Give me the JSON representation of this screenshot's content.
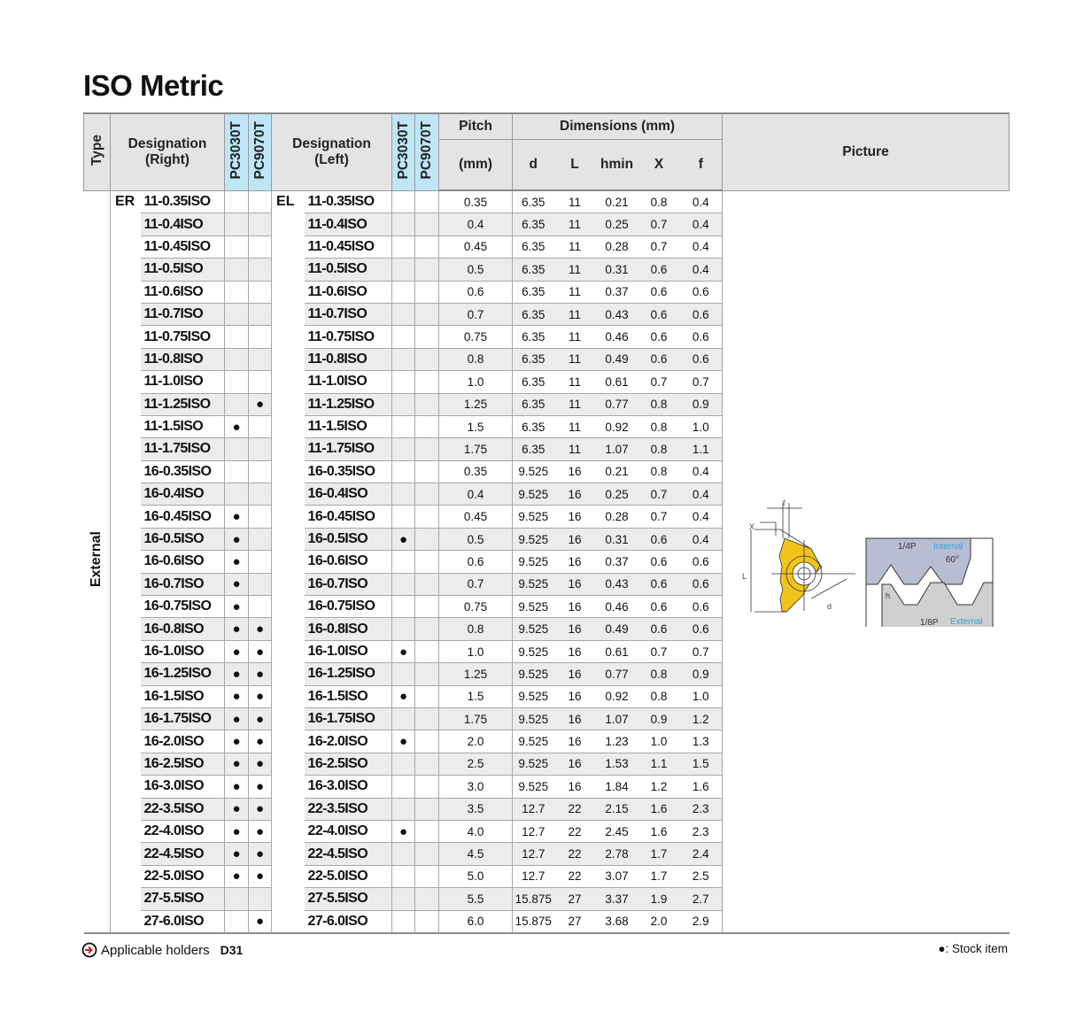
{
  "title": "ISO Metric",
  "header": {
    "type": "Type",
    "designation_right": [
      "Designation",
      "(Right)"
    ],
    "designation_left": [
      "Designation",
      "(Left)"
    ],
    "grades": [
      "PC3030T",
      "PC9070T"
    ],
    "pitch": "Pitch",
    "pitch_unit": "(mm)",
    "dimensions": "Dimensions (mm)",
    "dim_cols": [
      "d",
      "L",
      "hmin",
      "X",
      "f"
    ],
    "picture": "Picture"
  },
  "type_label": "External",
  "prefix_right": "ER",
  "prefix_left": "EL",
  "colors": {
    "header_bg": "#e4e4e4",
    "grade_header_bg": "#bfe6f7",
    "stripe": "#ececec",
    "insert": "#f2c31b",
    "accent_text": "#2aa3dc"
  },
  "rows": [
    {
      "des": "11-0.35ISO",
      "r1": false,
      "r2": false,
      "l1": false,
      "l2": false,
      "p": "0.35",
      "d": "6.35",
      "L": "11",
      "h": "0.21",
      "X": "0.8",
      "f": "0.4"
    },
    {
      "des": "11-0.4ISO",
      "r1": false,
      "r2": false,
      "l1": false,
      "l2": false,
      "p": "0.4",
      "d": "6.35",
      "L": "11",
      "h": "0.25",
      "X": "0.7",
      "f": "0.4"
    },
    {
      "des": "11-0.45ISO",
      "r1": false,
      "r2": false,
      "l1": false,
      "l2": false,
      "p": "0.45",
      "d": "6.35",
      "L": "11",
      "h": "0.28",
      "X": "0.7",
      "f": "0.4"
    },
    {
      "des": "11-0.5ISO",
      "r1": false,
      "r2": false,
      "l1": false,
      "l2": false,
      "p": "0.5",
      "d": "6.35",
      "L": "11",
      "h": "0.31",
      "X": "0.6",
      "f": "0.4"
    },
    {
      "des": "11-0.6ISO",
      "r1": false,
      "r2": false,
      "l1": false,
      "l2": false,
      "p": "0.6",
      "d": "6.35",
      "L": "11",
      "h": "0.37",
      "X": "0.6",
      "f": "0.6"
    },
    {
      "des": "11-0.7ISO",
      "r1": false,
      "r2": false,
      "l1": false,
      "l2": false,
      "p": "0.7",
      "d": "6.35",
      "L": "11",
      "h": "0.43",
      "X": "0.6",
      "f": "0.6"
    },
    {
      "des": "11-0.75ISO",
      "r1": false,
      "r2": false,
      "l1": false,
      "l2": false,
      "p": "0.75",
      "d": "6.35",
      "L": "11",
      "h": "0.46",
      "X": "0.6",
      "f": "0.6"
    },
    {
      "des": "11-0.8ISO",
      "r1": false,
      "r2": false,
      "l1": false,
      "l2": false,
      "p": "0.8",
      "d": "6.35",
      "L": "11",
      "h": "0.49",
      "X": "0.6",
      "f": "0.6"
    },
    {
      "des": "11-1.0ISO",
      "r1": false,
      "r2": false,
      "l1": false,
      "l2": false,
      "p": "1.0",
      "d": "6.35",
      "L": "11",
      "h": "0.61",
      "X": "0.7",
      "f": "0.7"
    },
    {
      "des": "11-1.25ISO",
      "r1": false,
      "r2": true,
      "l1": false,
      "l2": false,
      "p": "1.25",
      "d": "6.35",
      "L": "11",
      "h": "0.77",
      "X": "0.8",
      "f": "0.9"
    },
    {
      "des": "11-1.5ISO",
      "r1": true,
      "r2": false,
      "l1": false,
      "l2": false,
      "p": "1.5",
      "d": "6.35",
      "L": "11",
      "h": "0.92",
      "X": "0.8",
      "f": "1.0"
    },
    {
      "des": "11-1.75ISO",
      "r1": false,
      "r2": false,
      "l1": false,
      "l2": false,
      "p": "1.75",
      "d": "6.35",
      "L": "11",
      "h": "1.07",
      "X": "0.8",
      "f": "1.1"
    },
    {
      "des": "16-0.35ISO",
      "r1": false,
      "r2": false,
      "l1": false,
      "l2": false,
      "p": "0.35",
      "d": "9.525",
      "L": "16",
      "h": "0.21",
      "X": "0.8",
      "f": "0.4"
    },
    {
      "des": "16-0.4ISO",
      "r1": false,
      "r2": false,
      "l1": false,
      "l2": false,
      "p": "0.4",
      "d": "9.525",
      "L": "16",
      "h": "0.25",
      "X": "0.7",
      "f": "0.4"
    },
    {
      "des": "16-0.45ISO",
      "r1": true,
      "r2": false,
      "l1": false,
      "l2": false,
      "p": "0.45",
      "d": "9.525",
      "L": "16",
      "h": "0.28",
      "X": "0.7",
      "f": "0.4"
    },
    {
      "des": "16-0.5ISO",
      "r1": true,
      "r2": false,
      "l1": true,
      "l2": false,
      "p": "0.5",
      "d": "9.525",
      "L": "16",
      "h": "0.31",
      "X": "0.6",
      "f": "0.4"
    },
    {
      "des": "16-0.6ISO",
      "r1": true,
      "r2": false,
      "l1": false,
      "l2": false,
      "p": "0.6",
      "d": "9.525",
      "L": "16",
      "h": "0.37",
      "X": "0.6",
      "f": "0.6"
    },
    {
      "des": "16-0.7ISO",
      "r1": true,
      "r2": false,
      "l1": false,
      "l2": false,
      "p": "0.7",
      "d": "9.525",
      "L": "16",
      "h": "0.43",
      "X": "0.6",
      "f": "0.6"
    },
    {
      "des": "16-0.75ISO",
      "r1": true,
      "r2": false,
      "l1": false,
      "l2": false,
      "p": "0.75",
      "d": "9.525",
      "L": "16",
      "h": "0.46",
      "X": "0.6",
      "f": "0.6"
    },
    {
      "des": "16-0.8ISO",
      "r1": true,
      "r2": true,
      "l1": false,
      "l2": false,
      "p": "0.8",
      "d": "9.525",
      "L": "16",
      "h": "0.49",
      "X": "0.6",
      "f": "0.6"
    },
    {
      "des": "16-1.0ISO",
      "r1": true,
      "r2": true,
      "l1": true,
      "l2": false,
      "p": "1.0",
      "d": "9.525",
      "L": "16",
      "h": "0.61",
      "X": "0.7",
      "f": "0.7"
    },
    {
      "des": "16-1.25ISO",
      "r1": true,
      "r2": true,
      "l1": false,
      "l2": false,
      "p": "1.25",
      "d": "9.525",
      "L": "16",
      "h": "0.77",
      "X": "0.8",
      "f": "0.9"
    },
    {
      "des": "16-1.5ISO",
      "r1": true,
      "r2": true,
      "l1": true,
      "l2": false,
      "p": "1.5",
      "d": "9.525",
      "L": "16",
      "h": "0.92",
      "X": "0.8",
      "f": "1.0"
    },
    {
      "des": "16-1.75ISO",
      "r1": true,
      "r2": true,
      "l1": false,
      "l2": false,
      "p": "1.75",
      "d": "9.525",
      "L": "16",
      "h": "1.07",
      "X": "0.9",
      "f": "1.2"
    },
    {
      "des": "16-2.0ISO",
      "r1": true,
      "r2": true,
      "l1": true,
      "l2": false,
      "p": "2.0",
      "d": "9.525",
      "L": "16",
      "h": "1.23",
      "X": "1.0",
      "f": "1.3"
    },
    {
      "des": "16-2.5ISO",
      "r1": true,
      "r2": true,
      "l1": false,
      "l2": false,
      "p": "2.5",
      "d": "9.525",
      "L": "16",
      "h": "1.53",
      "X": "1.1",
      "f": "1.5"
    },
    {
      "des": "16-3.0ISO",
      "r1": true,
      "r2": true,
      "l1": false,
      "l2": false,
      "p": "3.0",
      "d": "9.525",
      "L": "16",
      "h": "1.84",
      "X": "1.2",
      "f": "1.6"
    },
    {
      "des": "22-3.5ISO",
      "r1": true,
      "r2": true,
      "l1": false,
      "l2": false,
      "p": "3.5",
      "d": "12.7",
      "L": "22",
      "h": "2.15",
      "X": "1.6",
      "f": "2.3"
    },
    {
      "des": "22-4.0ISO",
      "r1": true,
      "r2": true,
      "l1": true,
      "l2": false,
      "p": "4.0",
      "d": "12.7",
      "L": "22",
      "h": "2.45",
      "X": "1.6",
      "f": "2.3"
    },
    {
      "des": "22-4.5ISO",
      "r1": true,
      "r2": true,
      "l1": false,
      "l2": false,
      "p": "4.5",
      "d": "12.7",
      "L": "22",
      "h": "2.78",
      "X": "1.7",
      "f": "2.4"
    },
    {
      "des": "22-5.0ISO",
      "r1": true,
      "r2": true,
      "l1": false,
      "l2": false,
      "p": "5.0",
      "d": "12.7",
      "L": "22",
      "h": "3.07",
      "X": "1.7",
      "f": "2.5"
    },
    {
      "des": "27-5.5ISO",
      "r1": false,
      "r2": false,
      "l1": false,
      "l2": false,
      "p": "5.5",
      "d": "15.875",
      "L": "27",
      "h": "3.37",
      "X": "1.9",
      "f": "2.7"
    },
    {
      "des": "27-6.0ISO",
      "r1": false,
      "r2": true,
      "l1": false,
      "l2": false,
      "p": "6.0",
      "d": "15.875",
      "L": "27",
      "h": "3.68",
      "X": "2.0",
      "f": "2.9"
    }
  ],
  "stock_mark": "●",
  "picture": {
    "insert_labels": {
      "f": "f",
      "X": "X",
      "L": "L",
      "d": "d"
    },
    "thread_labels": {
      "quarter_pitch": "1/4P",
      "internal": "Internal",
      "angle": "60°",
      "h": "h",
      "eighth_pitch": "1/8P",
      "external": "External"
    }
  },
  "footer": {
    "holders_label": "Applicable holders",
    "holders_ref": "D31",
    "legend": "●: Stock item"
  }
}
